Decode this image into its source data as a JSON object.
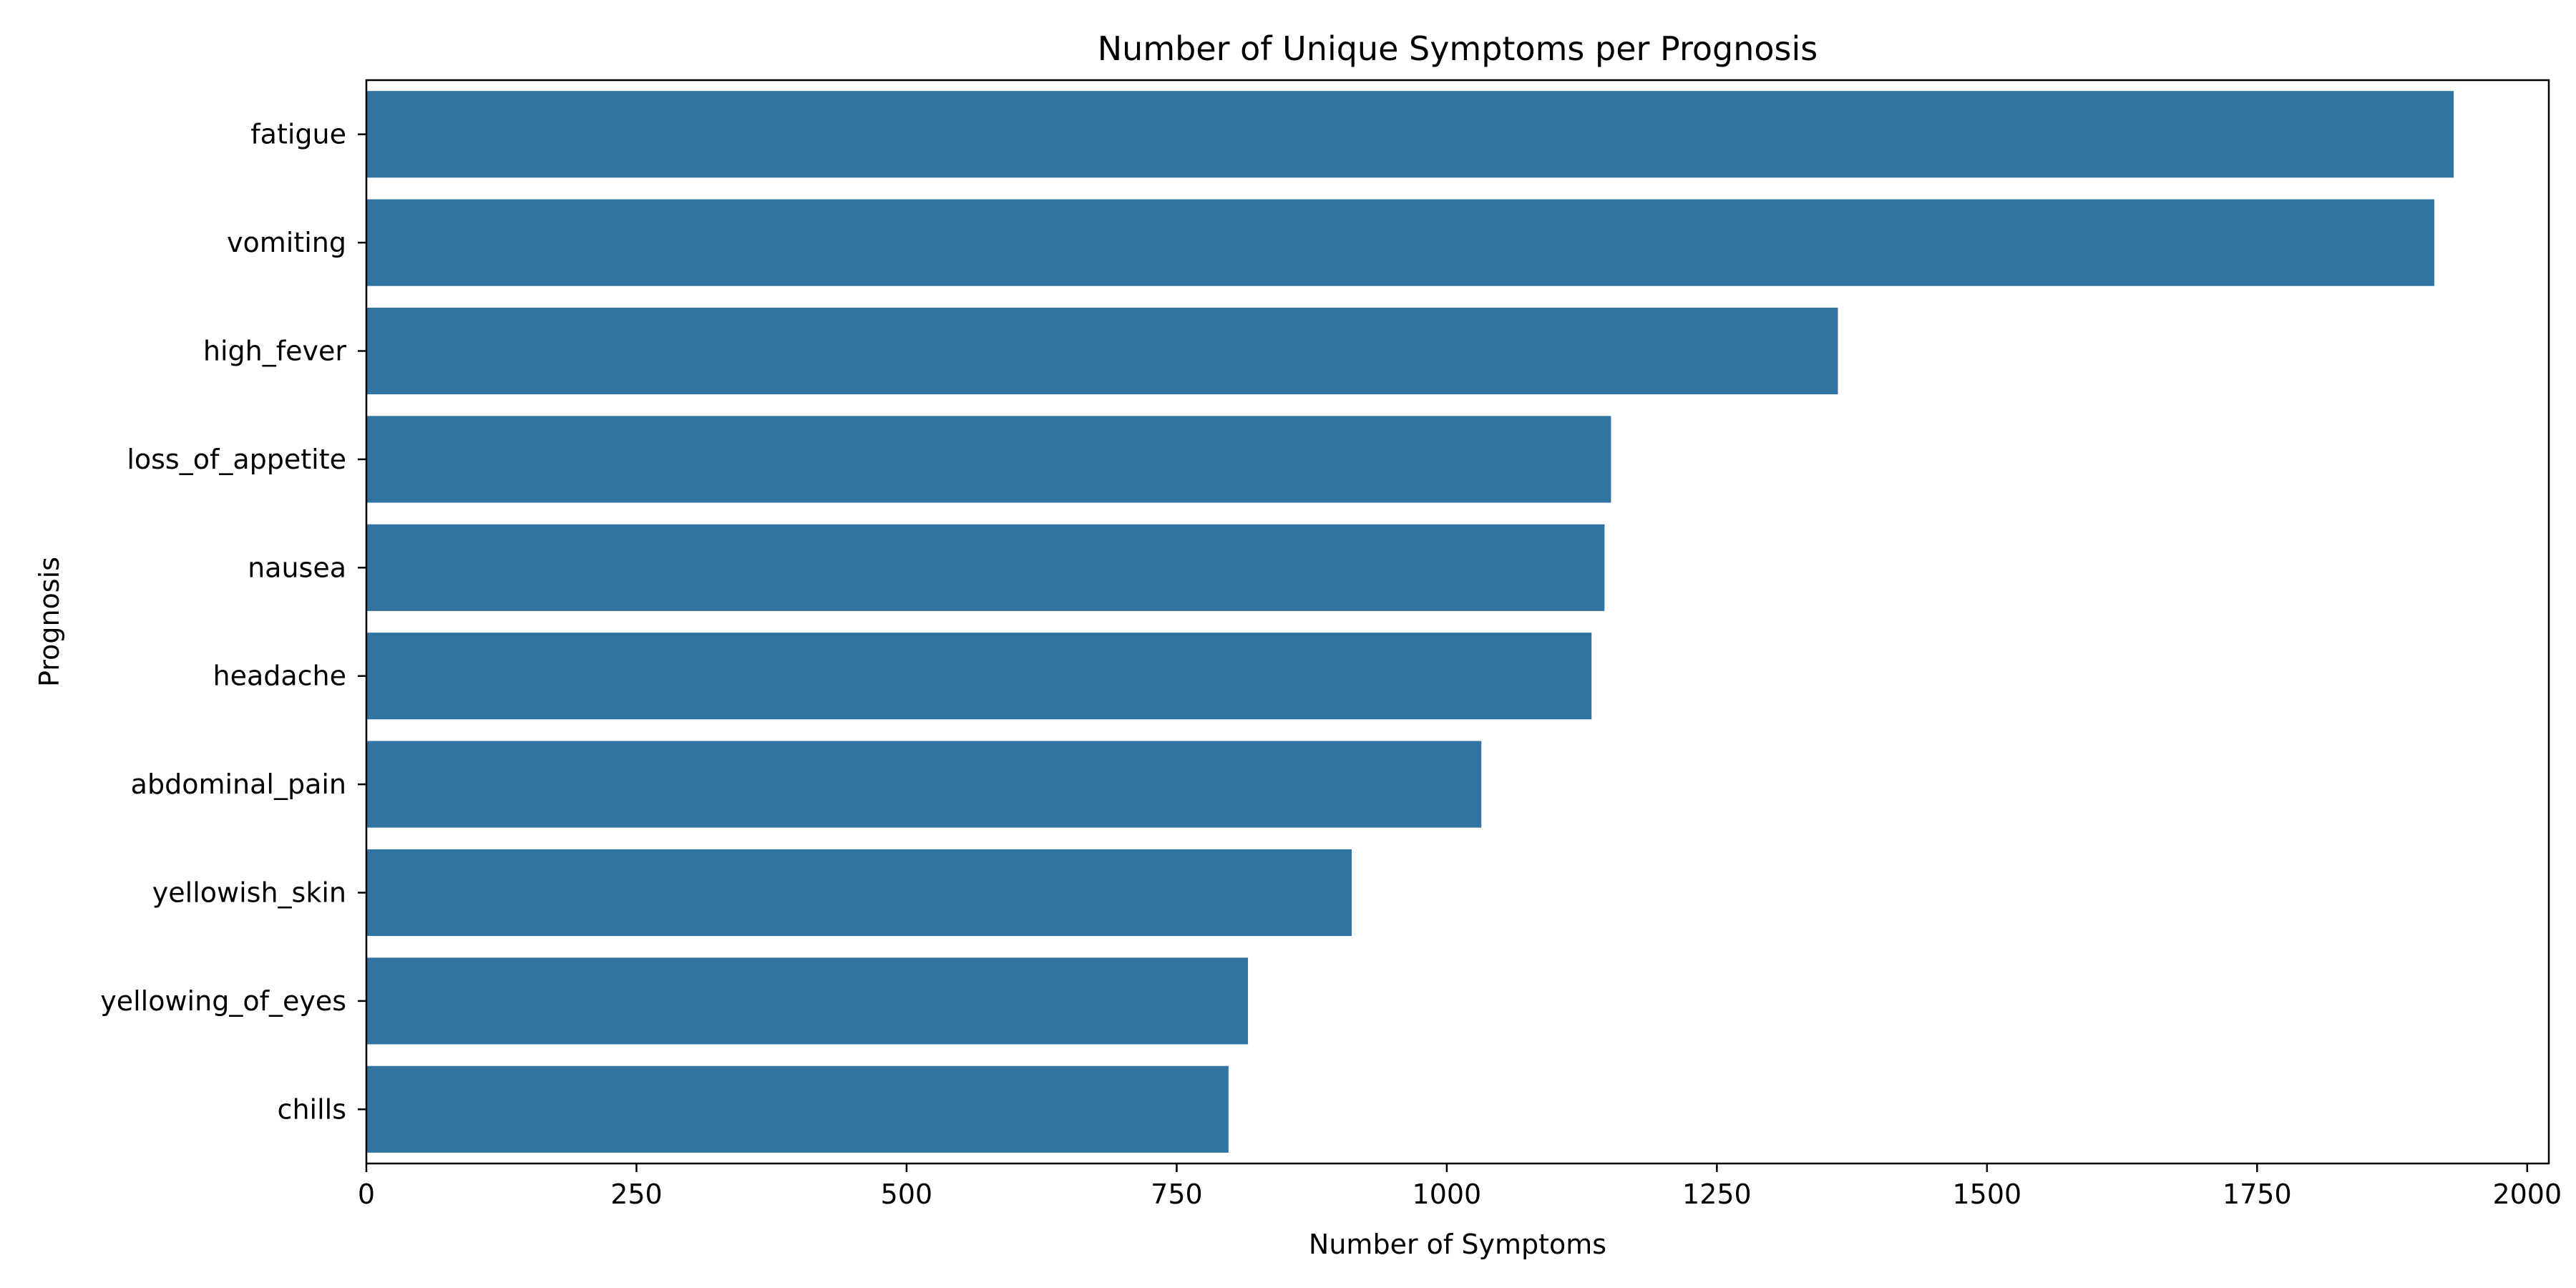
{
  "chart_data": {
    "type": "bar",
    "orientation": "horizontal",
    "title": "Number of Unique Symptoms per Prognosis",
    "xlabel": "Number of Symptoms",
    "ylabel": "Prognosis",
    "categories": [
      "fatigue",
      "vomiting",
      "high_fever",
      "loss_of_appetite",
      "nausea",
      "headache",
      "abdominal_pain",
      "yellowish_skin",
      "yellowing_of_eyes",
      "chills"
    ],
    "values": [
      1932,
      1914,
      1362,
      1152,
      1146,
      1134,
      1032,
      912,
      816,
      798
    ],
    "xlim": [
      0,
      2020
    ],
    "xticks": [
      0,
      250,
      500,
      750,
      1000,
      1250,
      1500,
      1750,
      2000
    ],
    "grid": false,
    "legend": "none",
    "bar_color": "#3274a1"
  }
}
